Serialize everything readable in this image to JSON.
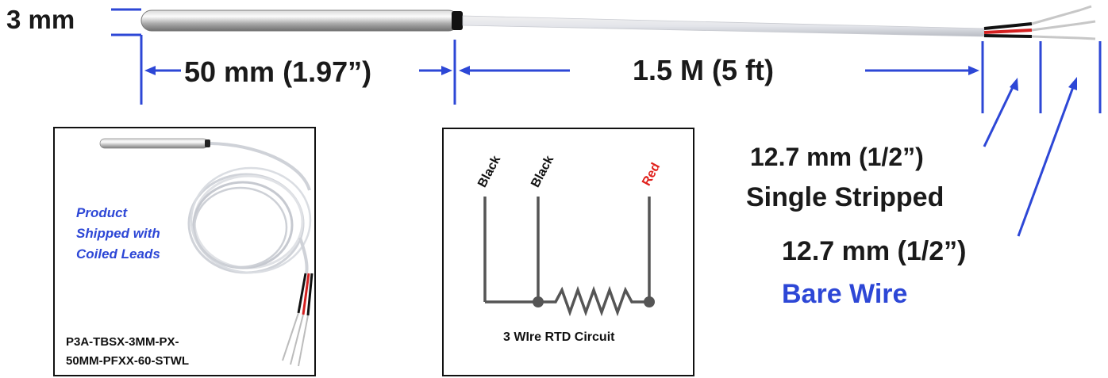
{
  "dims": {
    "diameter": "3 mm",
    "probe_length": "50 mm (1.97”)",
    "cable_length": "1.5 M (5 ft)",
    "single_stripped_size": "12.7 mm (1/2”)",
    "single_stripped_label": "Single Stripped",
    "bare_wire_size": "12.7 mm (1/2”)",
    "bare_wire_label": "Bare Wire"
  },
  "product_box": {
    "note": "Product\nShipped with\nCoiled Leads",
    "part_number_line1": "P3A-TBSX-3MM-PX-",
    "part_number_line2": "50MM-PFXX-60-STWL"
  },
  "circuit_box": {
    "title": "3 WIre RTD Circuit",
    "wires": [
      {
        "label": "Black",
        "color": "#111111"
      },
      {
        "label": "Black",
        "color": "#111111"
      },
      {
        "label": "Red",
        "color": "#e0201b"
      }
    ]
  },
  "colors": {
    "dimension_lines": "#2d47d6",
    "red_wire": "#d42020",
    "circuit_line": "#555555"
  }
}
